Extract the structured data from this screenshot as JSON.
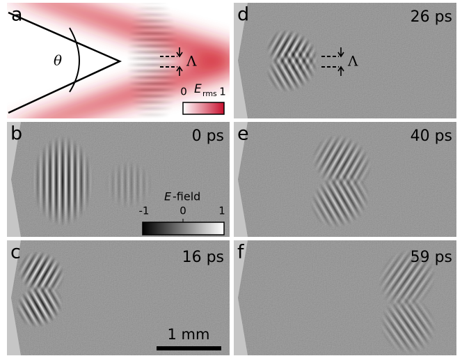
{
  "panel_a": {
    "letter": "a",
    "angle_symbol": "θ",
    "period_symbol": "Λ",
    "colorbar": {
      "min": 0,
      "max": 1,
      "symbol": "E",
      "subscript": "rms"
    }
  },
  "panel_b": {
    "letter": "b",
    "time": "0 ps",
    "colorbar": {
      "min": -1,
      "mid": 0,
      "max": 1,
      "symbol": "E",
      "suffix": "-field"
    }
  },
  "panel_c": {
    "letter": "c",
    "time": "16 ps",
    "scale_bar": "1 mm"
  },
  "panel_d": {
    "letter": "d",
    "time": "26 ps",
    "period_symbol": "Λ"
  },
  "panel_e": {
    "letter": "e",
    "time": "40 ps"
  },
  "panel_f": {
    "letter": "f",
    "time": "59 ps"
  }
}
